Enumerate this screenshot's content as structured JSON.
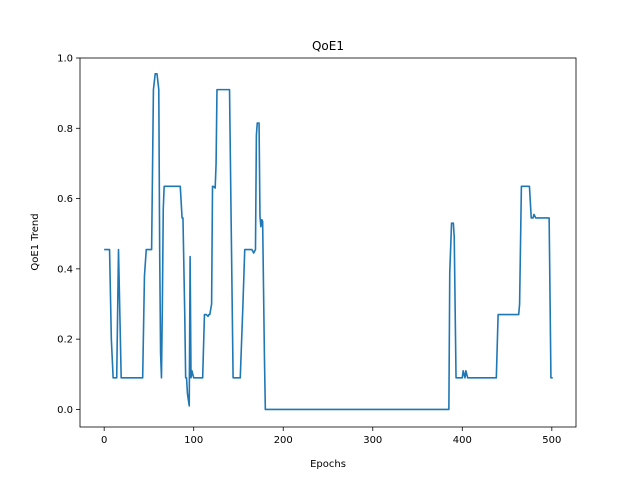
{
  "chart_data": {
    "type": "line",
    "title": "QoE1",
    "xlabel": "Epochs",
    "ylabel": "QoE1 Trend",
    "xlim": [
      -27,
      527
    ],
    "ylim": [
      -0.05,
      1.0
    ],
    "xticks": [
      0,
      100,
      200,
      300,
      400,
      500
    ],
    "yticks": [
      0.0,
      0.2,
      0.4,
      0.6,
      0.8,
      1.0
    ],
    "xtick_labels": [
      "0",
      "100",
      "200",
      "300",
      "400",
      "500"
    ],
    "ytick_labels": [
      "0.0",
      "0.2",
      "0.4",
      "0.6",
      "0.8",
      "1.0"
    ],
    "grid": false,
    "line_color": "#1f77b4",
    "series": [
      {
        "x": [
          0,
          6,
          8,
          10,
          14,
          16,
          19,
          21,
          43,
          45,
          47,
          53,
          55,
          57,
          59,
          61,
          62,
          63,
          64,
          65,
          66,
          67,
          69,
          71,
          85,
          87,
          88,
          90,
          91,
          92,
          93,
          95,
          96,
          97,
          98,
          100,
          110,
          112,
          113,
          114,
          116,
          117,
          118,
          120,
          121,
          122,
          124,
          125,
          126,
          128,
          130,
          140,
          142,
          144,
          145,
          146,
          152,
          155,
          157,
          163,
          165,
          167,
          169,
          170,
          171,
          173,
          174,
          175,
          176,
          177,
          179,
          180,
          280,
          383,
          385,
          386,
          388,
          390,
          391,
          393,
          395,
          400,
          401,
          403,
          404,
          406,
          436,
          438,
          440,
          463,
          464,
          466,
          475,
          477,
          479,
          480,
          482,
          497,
          499,
          501
        ],
        "y": [
          0.455,
          0.455,
          0.2,
          0.09,
          0.09,
          0.455,
          0.09,
          0.09,
          0.09,
          0.38,
          0.455,
          0.455,
          0.91,
          0.955,
          0.955,
          0.91,
          0.45,
          0.16,
          0.09,
          0.3,
          0.57,
          0.635,
          0.635,
          0.635,
          0.635,
          0.545,
          0.545,
          0.27,
          0.09,
          0.09,
          0.045,
          0.01,
          0.435,
          0.09,
          0.11,
          0.09,
          0.09,
          0.27,
          0.27,
          0.27,
          0.265,
          0.27,
          0.27,
          0.3,
          0.635,
          0.635,
          0.63,
          0.7,
          0.91,
          0.91,
          0.91,
          0.91,
          0.5,
          0.09,
          0.09,
          0.09,
          0.09,
          0.3,
          0.455,
          0.455,
          0.455,
          0.445,
          0.455,
          0.78,
          0.815,
          0.815,
          0.55,
          0.52,
          0.54,
          0.535,
          0.15,
          0.0,
          0.0,
          0.0,
          0.0,
          0.39,
          0.53,
          0.53,
          0.49,
          0.09,
          0.09,
          0.09,
          0.11,
          0.09,
          0.11,
          0.09,
          0.09,
          0.09,
          0.27,
          0.27,
          0.3,
          0.635,
          0.635,
          0.545,
          0.545,
          0.555,
          0.545,
          0.545,
          0.09,
          0.09
        ]
      }
    ]
  }
}
